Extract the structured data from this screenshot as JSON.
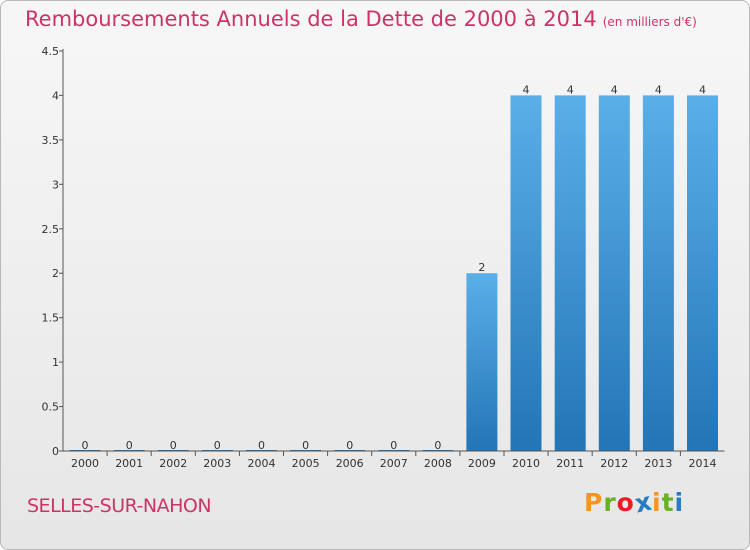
{
  "header": {
    "title": "Remboursements Annuels de la Dette de 2000 à 2014",
    "subtitle": "(en milliers d'€)"
  },
  "footer": {
    "commune": "SELLES-SUR-NAHON",
    "logo_letters": [
      "P",
      "r",
      "o",
      "x",
      "i",
      "t",
      "i"
    ]
  },
  "colors": {
    "title": "#cc3366",
    "bar_light": "#5aafe8",
    "bar_dark": "#2375b6",
    "logo": [
      "#f7941d",
      "#6ab023",
      "#ed1c24",
      "#2a7bc0",
      "#f7941d",
      "#6ab023",
      "#2a7bc0"
    ]
  },
  "chart_data": {
    "type": "bar",
    "title": "Remboursements Annuels de la Dette de 2000 à 2014",
    "subtitle": "(en milliers d'€)",
    "xlabel": "",
    "ylabel": "",
    "categories": [
      "2000",
      "2001",
      "2002",
      "2003",
      "2004",
      "2005",
      "2006",
      "2007",
      "2008",
      "2009",
      "2010",
      "2011",
      "2012",
      "2013",
      "2014"
    ],
    "values": [
      0,
      0,
      0,
      0,
      0,
      0,
      0,
      0,
      0,
      2,
      4,
      4,
      4,
      4,
      4
    ],
    "value_labels": [
      "0",
      "0",
      "0",
      "0",
      "0",
      "0",
      "0",
      "0",
      "0",
      "2",
      "4",
      "4",
      "4",
      "4",
      "4"
    ],
    "ylim": [
      0,
      4.5
    ],
    "yticks": [
      0,
      0.5,
      1,
      1.5,
      2,
      2.5,
      3,
      3.5,
      4,
      4.5
    ],
    "ytick_labels": [
      "0",
      "0.5",
      "1",
      "1.5",
      "2",
      "2.5",
      "3",
      "3.5",
      "4",
      "4.5"
    ],
    "grid": false,
    "legend": "none"
  }
}
